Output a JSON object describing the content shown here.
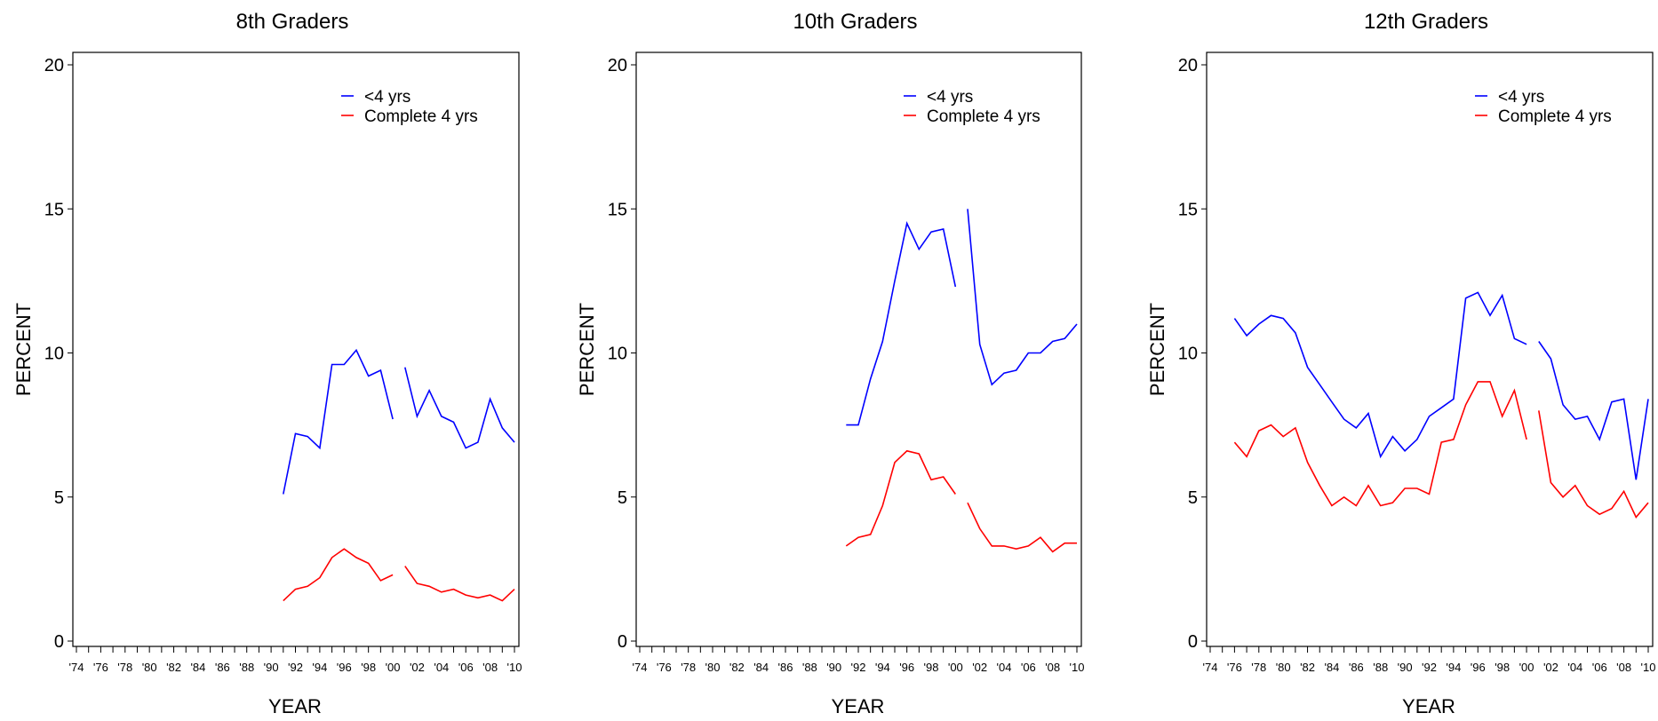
{
  "chart_data": [
    {
      "type": "line",
      "title": "8th Graders",
      "xlabel": "YEAR",
      "ylabel": "PERCENT",
      "xlim": [
        1974,
        2010
      ],
      "ylim": [
        0,
        20
      ],
      "yticks": [
        0,
        5,
        10,
        15,
        20
      ],
      "xtick_labels": [
        "'74",
        "'76",
        "'78",
        "'80",
        "'82",
        "'84",
        "'86",
        "'88",
        "'90",
        "'92",
        "'94",
        "'96",
        "'98",
        "'00",
        "'02",
        "'04",
        "'06",
        "'08",
        "'10"
      ],
      "legend_position": "top-right",
      "series": [
        {
          "name": "<4 yrs",
          "color": "#0000ff",
          "segments": [
            {
              "x": [
                1991,
                1992,
                1993,
                1994,
                1995,
                1996,
                1997,
                1998,
                1999,
                2000
              ],
              "y": [
                5.1,
                7.2,
                7.1,
                6.7,
                9.6,
                9.6,
                10.1,
                9.2,
                9.4,
                7.7
              ]
            },
            {
              "x": [
                2001,
                2002,
                2003,
                2004,
                2005,
                2006,
                2007,
                2008,
                2009,
                2010
              ],
              "y": [
                9.5,
                7.8,
                8.7,
                7.8,
                7.6,
                6.7,
                6.9,
                8.4,
                7.4,
                6.9
              ]
            }
          ]
        },
        {
          "name": "Complete 4 yrs",
          "color": "#ff0000",
          "segments": [
            {
              "x": [
                1991,
                1992,
                1993,
                1994,
                1995,
                1996,
                1997,
                1998,
                1999,
                2000
              ],
              "y": [
                1.4,
                1.8,
                1.9,
                2.2,
                2.9,
                3.2,
                2.9,
                2.7,
                2.1,
                2.3
              ]
            },
            {
              "x": [
                2001,
                2002,
                2003,
                2004,
                2005,
                2006,
                2007,
                2008,
                2009,
                2010
              ],
              "y": [
                2.6,
                2.0,
                1.9,
                1.7,
                1.8,
                1.6,
                1.5,
                1.6,
                1.4,
                1.8
              ]
            }
          ]
        }
      ]
    },
    {
      "type": "line",
      "title": "10th Graders",
      "xlabel": "YEAR",
      "ylabel": "PERCENT",
      "xlim": [
        1974,
        2010
      ],
      "ylim": [
        0,
        20
      ],
      "yticks": [
        0,
        5,
        10,
        15,
        20
      ],
      "xtick_labels": [
        "'74",
        "'76",
        "'78",
        "'80",
        "'82",
        "'84",
        "'86",
        "'88",
        "'90",
        "'92",
        "'94",
        "'96",
        "'98",
        "'00",
        "'02",
        "'04",
        "'06",
        "'08",
        "'10"
      ],
      "legend_position": "top-right",
      "series": [
        {
          "name": "<4 yrs",
          "color": "#0000ff",
          "segments": [
            {
              "x": [
                1991,
                1992,
                1993,
                1994,
                1995,
                1996,
                1997,
                1998,
                1999,
                2000
              ],
              "y": [
                7.5,
                7.5,
                9.1,
                10.4,
                12.5,
                14.5,
                13.6,
                14.2,
                14.3,
                12.3
              ]
            },
            {
              "x": [
                2001,
                2002,
                2003,
                2004,
                2005,
                2006,
                2007,
                2008,
                2009,
                2010
              ],
              "y": [
                15.0,
                10.3,
                8.9,
                9.3,
                9.4,
                10.0,
                10.0,
                10.4,
                10.5,
                11.0
              ]
            }
          ]
        },
        {
          "name": "Complete 4 yrs",
          "color": "#ff0000",
          "segments": [
            {
              "x": [
                1991,
                1992,
                1993,
                1994,
                1995,
                1996,
                1997,
                1998,
                1999,
                2000
              ],
              "y": [
                3.3,
                3.6,
                3.7,
                4.7,
                6.2,
                6.6,
                6.5,
                5.6,
                5.7,
                5.1
              ]
            },
            {
              "x": [
                2001,
                2002,
                2003,
                2004,
                2005,
                2006,
                2007,
                2008,
                2009,
                2010
              ],
              "y": [
                4.8,
                3.9,
                3.3,
                3.3,
                3.2,
                3.3,
                3.6,
                3.1,
                3.4,
                3.4
              ]
            }
          ]
        }
      ]
    },
    {
      "type": "line",
      "title": "12th Graders",
      "xlabel": "YEAR",
      "ylabel": "PERCENT",
      "xlim": [
        1974,
        2010
      ],
      "ylim": [
        0,
        20
      ],
      "yticks": [
        0,
        5,
        10,
        15,
        20
      ],
      "xtick_labels": [
        "'74",
        "'76",
        "'78",
        "'80",
        "'82",
        "'84",
        "'86",
        "'88",
        "'90",
        "'92",
        "'94",
        "'96",
        "'98",
        "'00",
        "'02",
        "'04",
        "'06",
        "'08",
        "'10"
      ],
      "legend_position": "top-right",
      "series": [
        {
          "name": "<4 yrs",
          "color": "#0000ff",
          "segments": [
            {
              "x": [
                1976,
                1977,
                1978,
                1979,
                1980,
                1981,
                1982,
                1983,
                1984,
                1985,
                1986,
                1987,
                1988,
                1989,
                1990,
                1991,
                1992,
                1993,
                1994,
                1995,
                1996,
                1997,
                1998,
                1999,
                2000
              ],
              "y": [
                11.2,
                10.6,
                11.0,
                11.3,
                11.2,
                10.7,
                9.5,
                8.9,
                8.3,
                7.7,
                7.4,
                7.9,
                6.4,
                7.1,
                6.6,
                7.0,
                7.8,
                8.1,
                8.4,
                11.9,
                12.1,
                11.3,
                12.0,
                10.5,
                10.3
              ]
            },
            {
              "x": [
                2001,
                2002,
                2003,
                2004,
                2005,
                2006,
                2007,
                2008,
                2009,
                2010
              ],
              "y": [
                10.4,
                9.8,
                8.2,
                7.7,
                7.8,
                7.0,
                8.3,
                8.4,
                5.6,
                8.4
              ]
            }
          ]
        },
        {
          "name": "Complete 4 yrs",
          "color": "#ff0000",
          "segments": [
            {
              "x": [
                1976,
                1977,
                1978,
                1979,
                1980,
                1981,
                1982,
                1983,
                1984,
                1985,
                1986,
                1987,
                1988,
                1989,
                1990,
                1991,
                1992,
                1993,
                1994,
                1995,
                1996,
                1997,
                1998,
                1999,
                2000
              ],
              "y": [
                6.9,
                6.4,
                7.3,
                7.5,
                7.1,
                7.4,
                6.2,
                5.4,
                4.7,
                5.0,
                4.7,
                5.4,
                4.7,
                4.8,
                5.3,
                5.3,
                5.1,
                6.9,
                7.0,
                8.2,
                9.0,
                9.0,
                7.8,
                8.7,
                7.0
              ]
            },
            {
              "x": [
                2001,
                2002,
                2003,
                2004,
                2005,
                2006,
                2007,
                2008,
                2009,
                2010
              ],
              "y": [
                8.0,
                5.5,
                5.0,
                5.4,
                4.7,
                4.4,
                4.6,
                5.2,
                4.3,
                4.8
              ]
            }
          ]
        }
      ]
    }
  ]
}
